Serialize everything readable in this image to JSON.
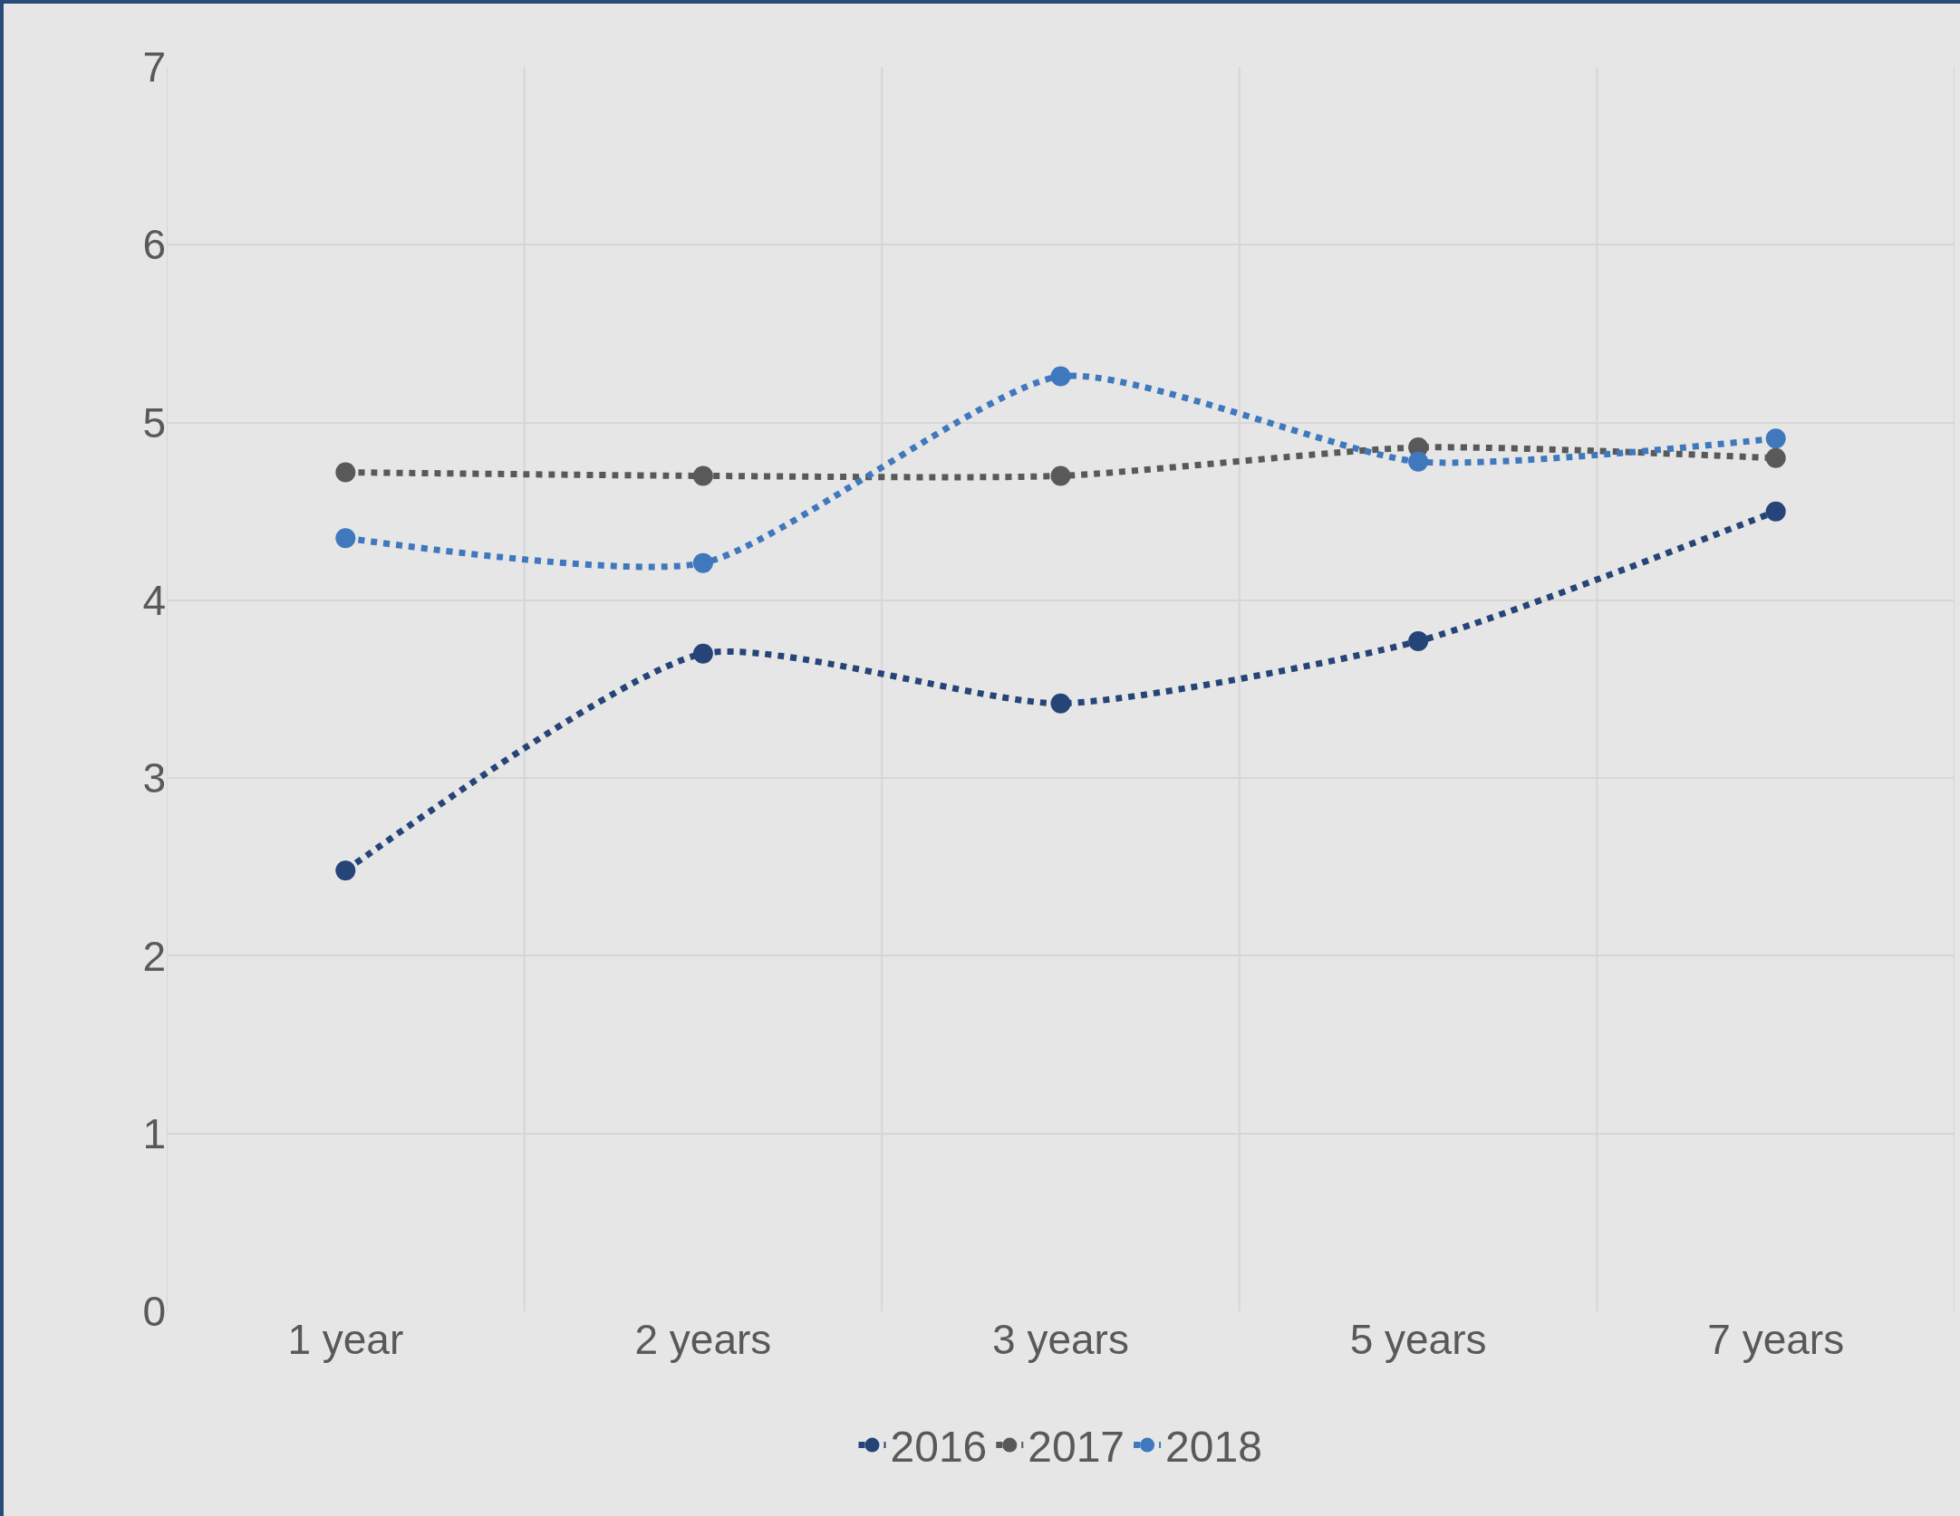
{
  "chart_data": {
    "type": "line",
    "categories": [
      "1 year",
      "2 years",
      "3 years",
      "5 years",
      "7 years"
    ],
    "series": [
      {
        "name": "2016",
        "color": "#264478",
        "values": [
          2.48,
          3.7,
          3.42,
          3.77,
          4.5
        ]
      },
      {
        "name": "2017",
        "color": "#595959",
        "values": [
          4.72,
          4.7,
          4.7,
          4.86,
          4.8
        ]
      },
      {
        "name": "2018",
        "color": "#3f78bd",
        "values": [
          4.35,
          4.21,
          5.26,
          4.78,
          4.91
        ]
      }
    ],
    "ylim": [
      0,
      7
    ],
    "yticks": [
      0,
      1,
      2,
      3,
      4,
      5,
      6,
      7
    ],
    "grid": true,
    "legend": "bottom",
    "marker": "circle",
    "line_style": "dotted"
  }
}
